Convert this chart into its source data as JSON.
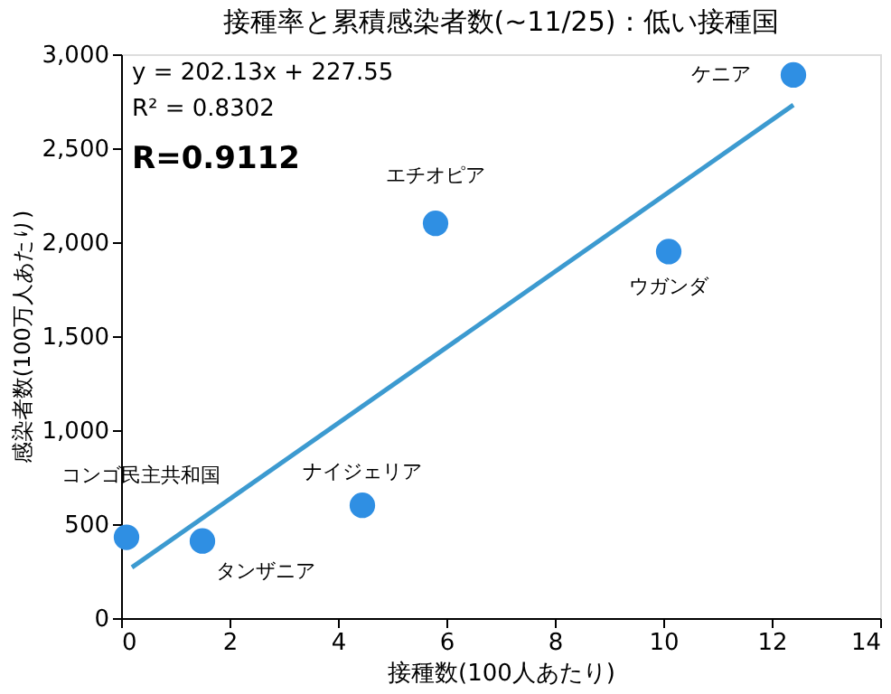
{
  "chart_data": {
    "type": "scatter",
    "title": "接種率と累積感染者数(~11/25)：低い接種国",
    "xlabel": "接種数(100人あたり)",
    "ylabel": "感染者数(100万人あたり)",
    "xlim": [
      0,
      14
    ],
    "xticks": [
      0,
      2,
      4,
      6,
      8,
      10,
      12,
      14
    ],
    "ylim": [
      0,
      3000
    ],
    "yticks": [
      0,
      {
        "value": 500,
        "label": "500"
      },
      {
        "value": 1000,
        "label": "1,000"
      },
      {
        "value": 1500,
        "label": "1,500"
      },
      {
        "value": 2000,
        "label": "2,000"
      },
      {
        "value": 2500,
        "label": "2,500"
      },
      {
        "value": 3000,
        "label": "3,000"
      }
    ],
    "grid": false,
    "legend": false,
    "marker": "circle",
    "series": [
      {
        "color": "#2f8fe3",
        "x": [
          0.1,
          1.5,
          4.45,
          5.8,
          10.1,
          12.4
        ],
        "values": [
          430,
          410,
          600,
          2100,
          1950,
          2890
        ]
      },
      {
        "type": "line",
        "marker": "none",
        "color": "#3c9ad0",
        "x": [
          0.2,
          12.4
        ],
        "values": [
          270,
          2730
        ]
      }
    ],
    "annotations": [
      "y = 202.13x + 227.55",
      "R² = 0.8302",
      "R=0.9112",
      {
        "text": "コンゴ民主共和国",
        "x": 0.1,
        "y": 430
      },
      {
        "text": "タンザニア",
        "x": 1.5,
        "y": 410
      },
      {
        "text": "ナイジェリア",
        "x": 4.45,
        "y": 600
      },
      {
        "text": "エチオピア",
        "x": 5.8,
        "y": 2100
      },
      {
        "text": "ウガンダ",
        "x": 10.1,
        "y": 1950
      },
      {
        "text": "ケニア",
        "x": 12.4,
        "y": 2890
      }
    ]
  }
}
